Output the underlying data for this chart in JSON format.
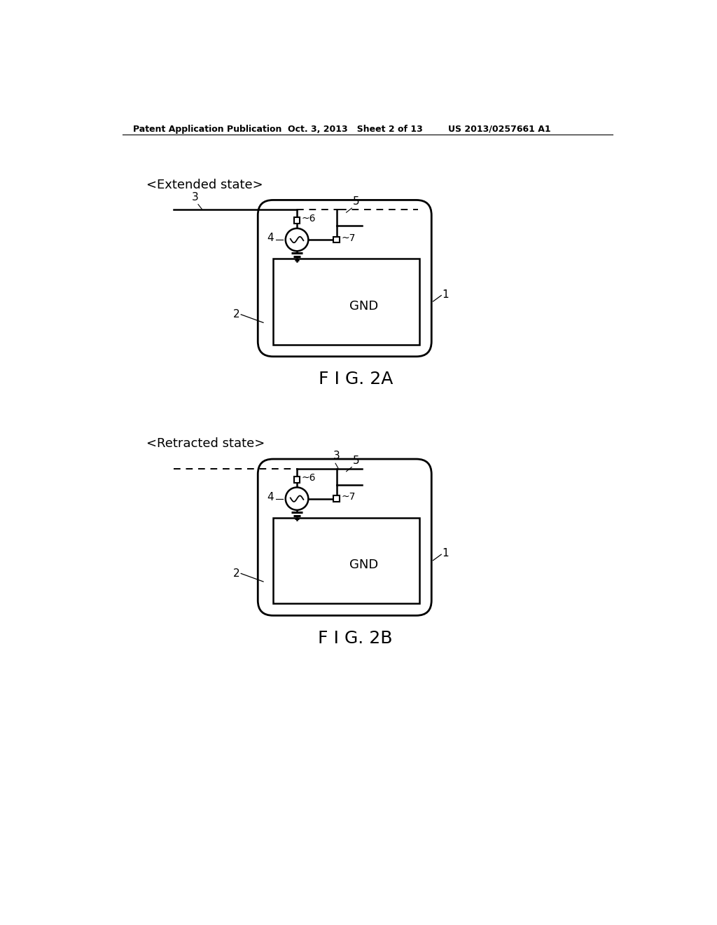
{
  "bg_color": "#ffffff",
  "line_color": "#000000",
  "header_left": "Patent Application Publication",
  "header_mid": "Oct. 3, 2013   Sheet 2 of 13",
  "header_right": "US 2013/0257661 A1",
  "fig2a_label": "F I G. 2A",
  "fig2b_label": "F I G. 2B",
  "state_a": "<Extended state>",
  "state_b": "<Retracted state>"
}
